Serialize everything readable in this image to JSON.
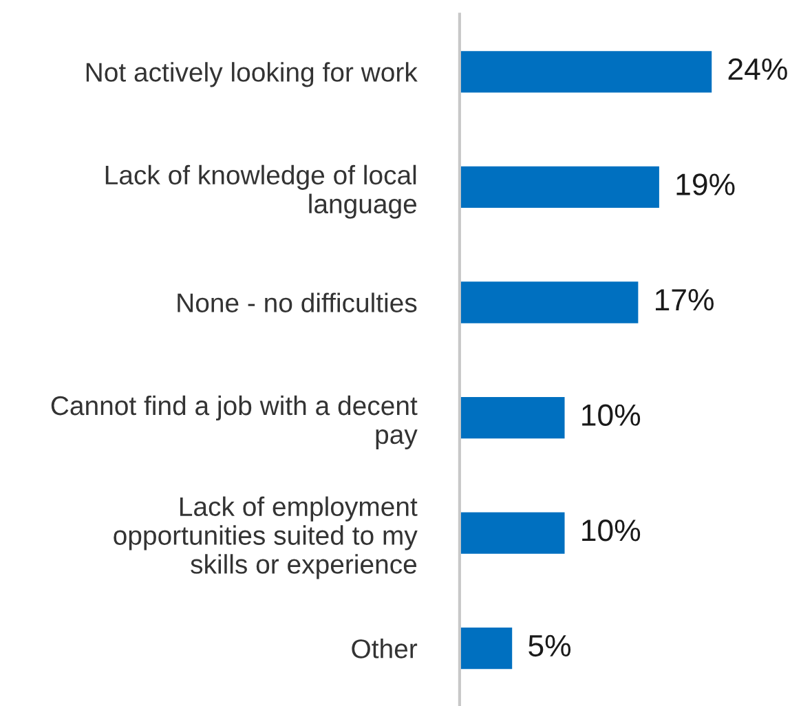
{
  "chart_data": {
    "type": "bar",
    "orientation": "horizontal",
    "categories": [
      "Not actively looking for work",
      "Lack of knowledge of local\nlanguage",
      "None - no difficulties",
      "Cannot find a job with a decent\npay",
      "Lack of employment\nopportunities suited to my\nskills or experience",
      "Other"
    ],
    "values": [
      24,
      19,
      17,
      10,
      10,
      5
    ],
    "value_labels": [
      "24%",
      "19%",
      "17%",
      "10%",
      "10%",
      "5%"
    ],
    "color": "#0070c0",
    "tick_labels": "y",
    "grid": false,
    "legend": false
  }
}
